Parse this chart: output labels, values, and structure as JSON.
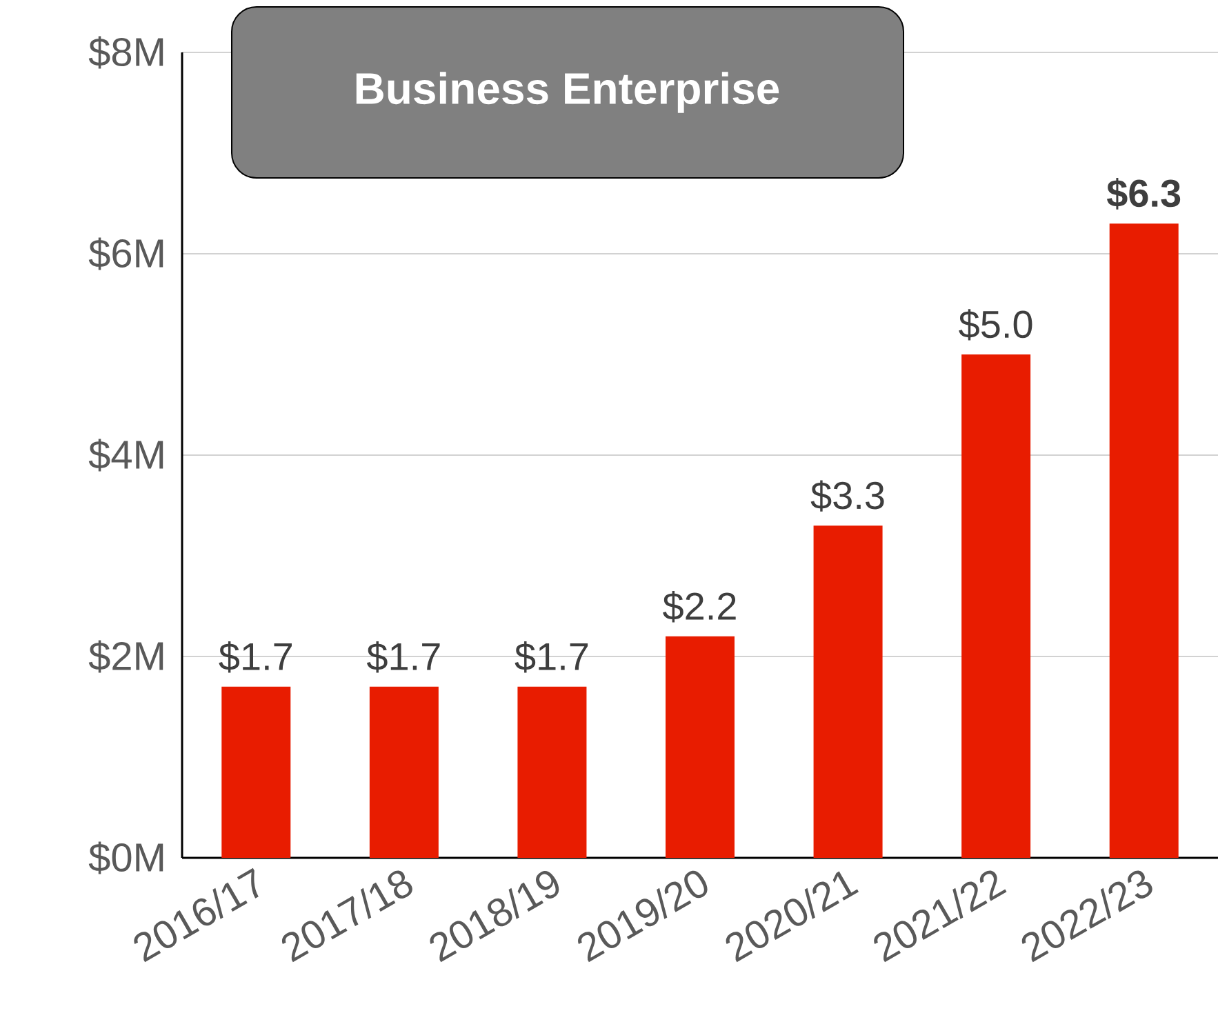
{
  "chart_data": {
    "type": "bar",
    "title": "Business Enterprise",
    "categories": [
      "2016/17",
      "2017/18",
      "2018/19",
      "2019/20",
      "2020/21",
      "2021/22",
      "2022/23"
    ],
    "values": [
      1.7,
      1.7,
      1.7,
      2.2,
      3.3,
      5.0,
      6.3
    ],
    "value_labels": [
      "$1.7",
      "$1.7",
      "$1.7",
      "$2.2",
      "$3.3",
      "$5.0",
      "**$6.3**"
    ],
    "color": "#e81c00",
    "ylim": [
      0,
      8
    ],
    "yticks": [
      {
        "value": 0,
        "label": "$0M"
      },
      {
        "value": 2,
        "label": "$2M"
      },
      {
        "value": 4,
        "label": "$4M"
      },
      {
        "value": 6,
        "label": "$6M"
      },
      {
        "value": 8,
        "label": "$8M"
      }
    ],
    "grid": "y"
  }
}
